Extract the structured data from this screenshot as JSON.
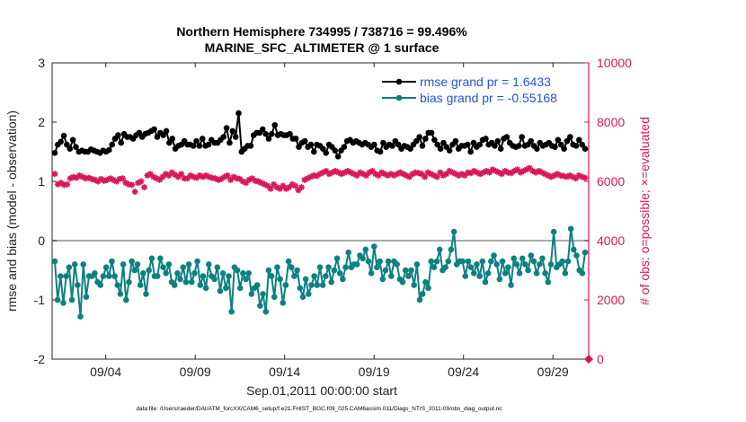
{
  "chart_data": {
    "type": "line",
    "title_line1": "Northern Hemisphere 734995 / 738716 = 99.496%",
    "title_line2": "MARINE_SFC_ALTIMETER @ 1 surface",
    "xlabel": "Sep.01,2011 00:00:00 start",
    "ylabel_left": "rmse and bias (model - observation)",
    "ylabel_right": "# of obs: o=possible; ×=evaluated",
    "footer": "data file: /Users/raeder/DAI/ATM_forcXX/CAM6_setup/f.e21.FHIST_BGC.f09_025.CAM6assim.011/Diags_NTrS_2011-09/obs_diag_output.nc",
    "x_ticks": [
      "09/04",
      "09/09",
      "09/14",
      "09/19",
      "09/24",
      "09/29"
    ],
    "x_tick_days": [
      4,
      9,
      14,
      19,
      24,
      29
    ],
    "xlim_days": [
      1.0,
      31.0
    ],
    "ylim_left": [
      -2,
      3
    ],
    "ylim_right": [
      0,
      10000
    ],
    "yticks_left": [
      "-2",
      "-1",
      "0",
      "1",
      "2",
      "3"
    ],
    "yticks_right": [
      "0",
      "2000",
      "4000",
      "6000",
      "8000",
      "10000"
    ],
    "colors": {
      "rmse": "#000000",
      "bias": "#0e8080",
      "obs": "#d8175a",
      "zero_line": "#aaaaaa"
    },
    "legend_position": "top-right",
    "series": [
      {
        "name": "rmse grand pr = 1.6433",
        "key": "rmse",
        "values": [
          1.48,
          1.62,
          1.67,
          1.77,
          1.62,
          1.55,
          1.7,
          1.58,
          1.5,
          1.52,
          1.5,
          1.5,
          1.54,
          1.52,
          1.5,
          1.48,
          1.52,
          1.5,
          1.53,
          1.62,
          1.72,
          1.78,
          1.65,
          1.8,
          1.75,
          1.75,
          1.72,
          1.78,
          1.82,
          1.75,
          1.8,
          1.82,
          1.85,
          1.88,
          1.75,
          1.82,
          1.78,
          1.85,
          1.65,
          1.72,
          1.55,
          1.6,
          1.62,
          1.68,
          1.62,
          1.62,
          1.6,
          1.68,
          1.6,
          1.72,
          1.6,
          1.62,
          1.7,
          1.65,
          1.65,
          1.7,
          1.75,
          1.9,
          1.65,
          1.85,
          1.75,
          2.15,
          1.5,
          1.55,
          1.6,
          1.6,
          1.78,
          1.82,
          1.82,
          1.88,
          1.8,
          1.72,
          1.8,
          1.95,
          1.78,
          1.8,
          1.78,
          1.78,
          1.8,
          1.72,
          1.72,
          1.58,
          1.65,
          1.68,
          1.58,
          1.62,
          1.5,
          1.62,
          1.6,
          1.55,
          1.48,
          1.62,
          1.58,
          1.52,
          1.42,
          1.52,
          1.58,
          1.68,
          1.7,
          1.65,
          1.68,
          1.65,
          1.62,
          1.65,
          1.62,
          1.58,
          1.62,
          1.52,
          1.5,
          1.65,
          1.58,
          1.62,
          1.6,
          1.68,
          1.62,
          1.55,
          1.6,
          1.58,
          1.55,
          1.62,
          1.68,
          1.75,
          1.6,
          1.72,
          1.82,
          1.82,
          1.7,
          1.62,
          1.55,
          1.65,
          1.58,
          1.52,
          1.62,
          1.68,
          1.55,
          1.6,
          1.6,
          1.62,
          1.5,
          1.65,
          1.58,
          1.62,
          1.7,
          1.72,
          1.62,
          1.65,
          1.6,
          1.68,
          1.55,
          1.72,
          1.75,
          1.65,
          1.6,
          1.58,
          1.6,
          1.75,
          1.6,
          1.62,
          1.68,
          1.6,
          1.55,
          1.65,
          1.6,
          1.62,
          1.65,
          1.6,
          1.58,
          1.7,
          1.62,
          1.55,
          1.68,
          1.75,
          1.62,
          1.6,
          1.7,
          1.62,
          1.55
        ]
      },
      {
        "name": "bias grand pr = -0.55168",
        "key": "bias",
        "values": [
          -0.35,
          -1.0,
          -0.6,
          -1.05,
          -0.6,
          -0.45,
          -1.0,
          -0.4,
          -0.75,
          -1.28,
          -0.4,
          -0.95,
          -0.6,
          -0.6,
          -0.55,
          -0.7,
          -0.75,
          -0.6,
          -0.45,
          -0.6,
          -0.35,
          -0.6,
          -0.75,
          -0.9,
          -0.4,
          -1.0,
          -0.7,
          -0.35,
          -0.5,
          -0.4,
          -0.75,
          -0.55,
          -0.9,
          -0.5,
          -0.3,
          -0.6,
          -0.6,
          -0.3,
          -0.45,
          -0.55,
          -0.4,
          -0.7,
          -0.75,
          -0.55,
          -0.65,
          -0.45,
          -0.7,
          -0.4,
          -0.7,
          -0.55,
          -0.35,
          -0.75,
          -0.6,
          -0.8,
          -0.4,
          -0.6,
          -0.65,
          -0.45,
          -0.85,
          -0.55,
          -0.8,
          -0.6,
          -1.2,
          -0.45,
          -0.5,
          -0.8,
          -0.55,
          -0.65,
          -0.55,
          -0.9,
          -0.8,
          -0.75,
          -1.1,
          -0.9,
          -1.2,
          -0.5,
          -0.6,
          -0.95,
          -0.45,
          -0.65,
          -1.05,
          -0.75,
          -0.35,
          -0.45,
          -0.6,
          -0.5,
          -0.8,
          -0.95,
          -0.65,
          -0.9,
          -0.75,
          -0.6,
          -0.75,
          -0.45,
          -0.75,
          -0.6,
          -0.45,
          -0.7,
          -0.5,
          -0.3,
          -0.55,
          -0.65,
          -0.45,
          -0.2,
          -0.45,
          -0.4,
          -0.4,
          -0.25,
          -0.3,
          -0.15,
          -0.35,
          -0.55,
          -0.1,
          -0.45,
          -0.35,
          -0.65,
          -0.5,
          -0.35,
          -0.6,
          -0.35,
          -0.4,
          -0.65,
          -0.7,
          -0.5,
          -0.6,
          -0.5,
          -0.75,
          -0.4,
          -1.0,
          -0.9,
          -0.7,
          -0.8,
          -0.35,
          -0.45,
          -0.35,
          -0.15,
          -0.5,
          -0.45,
          -0.35,
          -0.15,
          0.15,
          -0.4,
          -0.35,
          -0.35,
          -0.6,
          -0.35,
          -0.45,
          -0.55,
          -0.4,
          -0.6,
          -0.35,
          -0.7,
          -0.55,
          -0.35,
          -0.25,
          -0.4,
          -0.65,
          -0.35,
          -0.55,
          -0.45,
          -0.75,
          -0.3,
          -0.4,
          -0.55,
          -0.3,
          -0.4,
          -0.5,
          -0.25,
          -0.35,
          -0.55,
          -0.4,
          -0.3,
          -0.55,
          -0.7,
          -0.4,
          0.15,
          -0.45,
          -0.4,
          -0.35,
          -0.55,
          -0.35,
          0.2,
          -0.15,
          -0.25,
          -0.5,
          -0.55,
          -0.2
        ]
      },
      {
        "name": "# of obs evaluated",
        "key": "obs",
        "values": [
          6250,
          5900,
          5950,
          5880,
          5900,
          6100,
          6150,
          6120,
          6200,
          6150,
          6100,
          6120,
          6080,
          6050,
          6000,
          6080,
          6020,
          6050,
          6100,
          6050,
          6000,
          6080,
          6100,
          5950,
          5900,
          5880,
          5650,
          5950,
          6000,
          5800,
          6200,
          6250,
          6150,
          6100,
          6050,
          6150,
          6250,
          6200,
          6300,
          6220,
          6150,
          6250,
          6100,
          6100,
          6200,
          6150,
          6120,
          6200,
          6150,
          6200,
          6150,
          6120,
          6100,
          6050,
          6080,
          6150,
          6200,
          6050,
          6150,
          6100,
          6080,
          6000,
          5950,
          6050,
          6100,
          6020,
          6000,
          5950,
          5900,
          5850,
          5750,
          5900,
          5800,
          5750,
          5850,
          5750,
          5800,
          5900,
          5850,
          5700,
          5800,
          6050,
          6100,
          6150,
          6200,
          6180,
          6250,
          6300,
          6350,
          6250,
          6300,
          6350,
          6300,
          6250,
          6300,
          6350,
          6300,
          6250,
          6200,
          6300,
          6250,
          6200,
          6300,
          6350,
          6250,
          6200,
          6300,
          6250,
          6200,
          6250,
          6200,
          6250,
          6300,
          6250,
          6200,
          6150,
          6250,
          6300,
          6280,
          6250,
          6150,
          6300,
          6250,
          6200,
          6150,
          6300,
          6200,
          6250,
          6350,
          6300,
          6250,
          6200,
          6250,
          6200,
          6300,
          6280,
          6350,
          6300,
          6250,
          6300,
          6350,
          6300,
          6400,
          6350,
          6300,
          6250,
          6350,
          6300,
          6280,
          6350,
          6400,
          6300,
          6350,
          6400,
          6450,
          6350,
          6300,
          6350,
          6300,
          6250,
          6200,
          6150,
          6200,
          6250,
          6200,
          6180,
          6150,
          6200,
          6150,
          6100,
          6200,
          6150,
          6120
        ]
      }
    ],
    "obs_possible_final": 0
  }
}
